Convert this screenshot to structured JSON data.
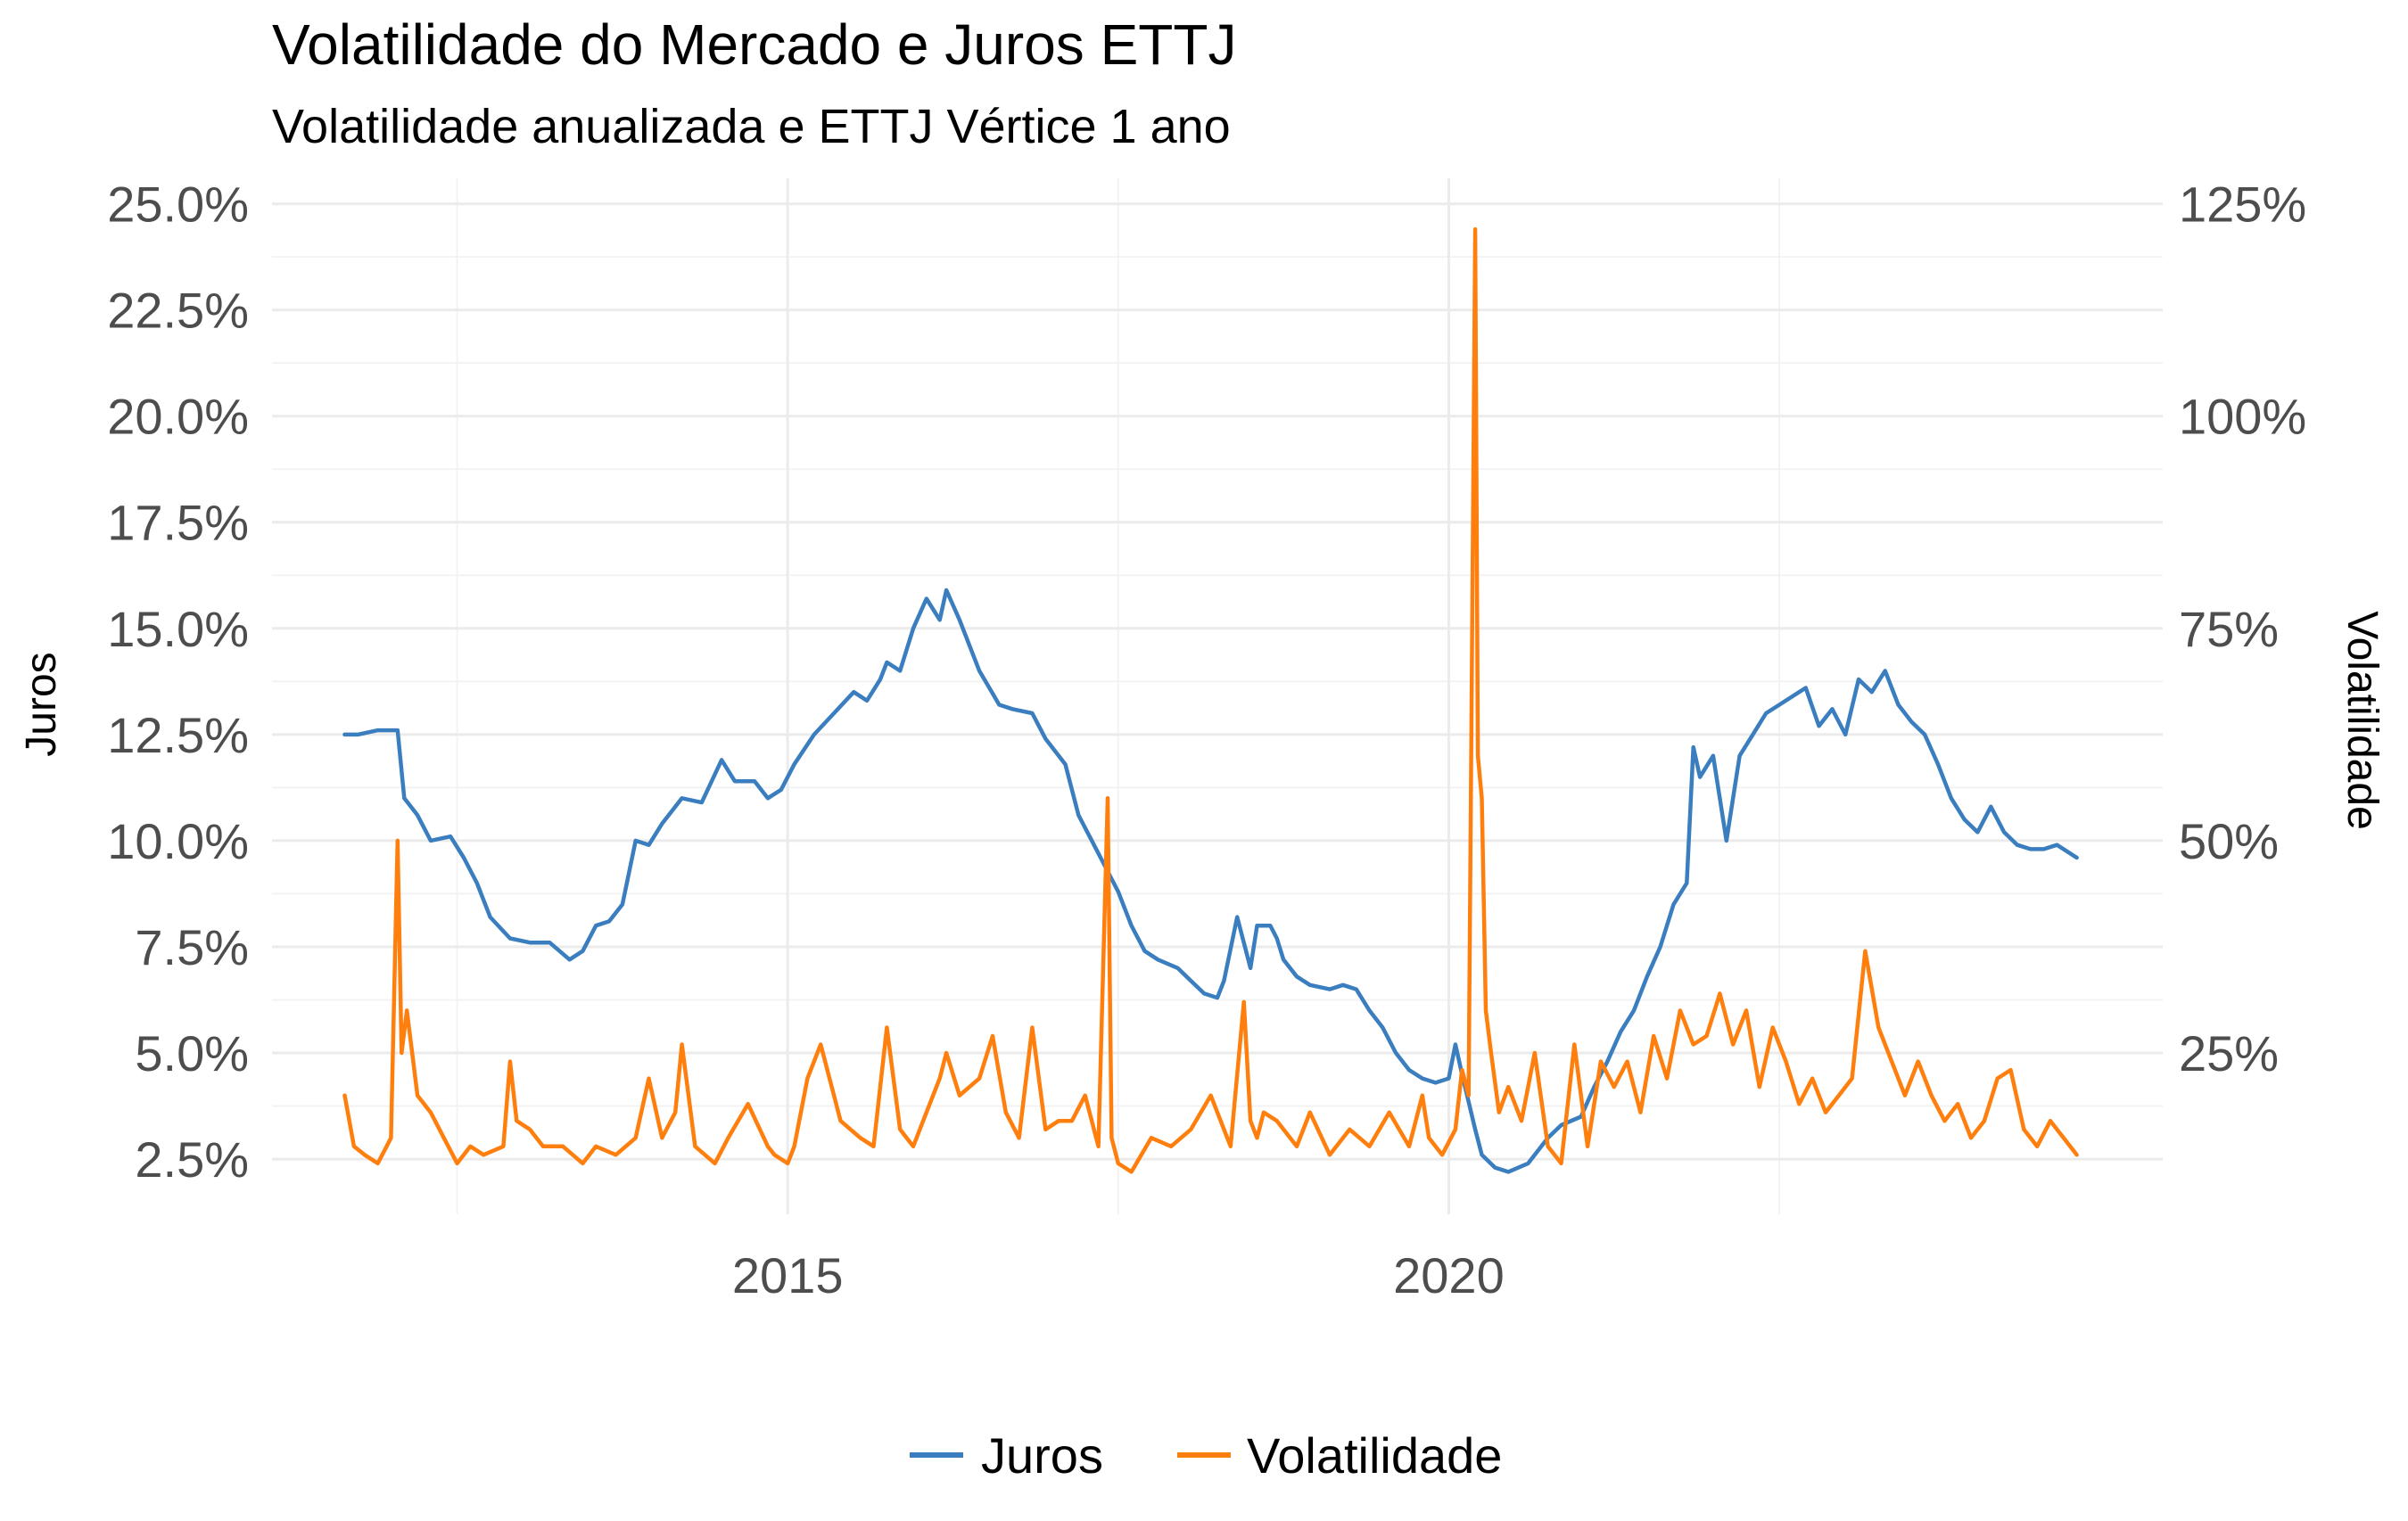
{
  "chart_data": {
    "type": "line",
    "title": "Volatilidade do Mercado e Juros ETTJ",
    "subtitle": "Volatilidade anualizada e ETTJ Vértice 1 ano",
    "ylabel_left": "Juros",
    "ylabel_right": "Volatilidade",
    "xlim": [
      2011.1,
      2025.4
    ],
    "ylim_left": [
      0.012,
      0.256
    ],
    "ylim_right": [
      0.06,
      1.28
    ],
    "x_ticks": [
      2015,
      2020
    ],
    "x_tick_labels": [
      "2015",
      "2020"
    ],
    "y_ticks_left": [
      0.025,
      0.05,
      0.075,
      0.1,
      0.125,
      0.15,
      0.175,
      0.2,
      0.225,
      0.25
    ],
    "y_tick_labels_left": [
      "2.5%",
      "5.0%",
      "7.5%",
      "10.0%",
      "12.5%",
      "15.0%",
      "17.5%",
      "20.0%",
      "22.5%",
      "25.0%"
    ],
    "y_ticks_right": [
      0.25,
      0.5,
      0.75,
      1.0,
      1.25
    ],
    "y_tick_labels_right": [
      "25%",
      "50%",
      "75%",
      "100%",
      "125%"
    ],
    "grid": true,
    "legend_position": "bottom",
    "series": [
      {
        "name": "Juros",
        "axis": "left",
        "color": "#3a7ebf",
        "x": [
          2011.65,
          2011.75,
          2011.9,
          2012.05,
          2012.1,
          2012.2,
          2012.3,
          2012.45,
          2012.55,
          2012.65,
          2012.75,
          2012.9,
          2013.05,
          2013.2,
          2013.35,
          2013.45,
          2013.55,
          2013.65,
          2013.75,
          2013.85,
          2013.95,
          2014.05,
          2014.2,
          2014.35,
          2014.5,
          2014.6,
          2014.75,
          2014.85,
          2014.95,
          2015.05,
          2015.2,
          2015.35,
          2015.5,
          2015.6,
          2015.7,
          2015.75,
          2015.85,
          2015.95,
          2016.05,
          2016.15,
          2016.2,
          2016.3,
          2016.45,
          2016.6,
          2016.7,
          2016.85,
          2016.95,
          2017.1,
          2017.2,
          2017.3,
          2017.4,
          2017.5,
          2017.6,
          2017.7,
          2017.8,
          2017.95,
          2018.05,
          2018.15,
          2018.25,
          2018.3,
          2018.4,
          2018.5,
          2018.55,
          2018.65,
          2018.7,
          2018.75,
          2018.85,
          2018.95,
          2019.1,
          2019.2,
          2019.3,
          2019.4,
          2019.5,
          2019.6,
          2019.7,
          2019.8,
          2019.9,
          2020.0,
          2020.05,
          2020.1,
          2020.2,
          2020.25,
          2020.35,
          2020.45,
          2020.6,
          2020.75,
          2020.85,
          2021.0,
          2021.1,
          2021.2,
          2021.3,
          2021.4,
          2021.5,
          2021.6,
          2021.7,
          2021.8,
          2021.85,
          2021.9,
          2022.0,
          2022.1,
          2022.2,
          2022.3,
          2022.4,
          2022.5,
          2022.6,
          2022.7,
          2022.8,
          2022.9,
          2023.0,
          2023.1,
          2023.2,
          2023.3,
          2023.4,
          2023.5,
          2023.6,
          2023.7,
          2023.8,
          2023.9,
          2024.0,
          2024.1,
          2024.2,
          2024.3,
          2024.4,
          2024.5,
          2024.6,
          2024.75
        ],
        "y": [
          0.125,
          0.125,
          0.126,
          0.126,
          0.11,
          0.106,
          0.1,
          0.101,
          0.096,
          0.09,
          0.082,
          0.077,
          0.076,
          0.076,
          0.072,
          0.074,
          0.08,
          0.081,
          0.085,
          0.1,
          0.099,
          0.104,
          0.11,
          0.109,
          0.119,
          0.114,
          0.114,
          0.11,
          0.112,
          0.118,
          0.125,
          0.13,
          0.135,
          0.133,
          0.138,
          0.142,
          0.14,
          0.15,
          0.157,
          0.152,
          0.159,
          0.152,
          0.14,
          0.132,
          0.131,
          0.13,
          0.124,
          0.118,
          0.106,
          0.1,
          0.094,
          0.088,
          0.08,
          0.074,
          0.072,
          0.07,
          0.067,
          0.064,
          0.063,
          0.067,
          0.082,
          0.07,
          0.08,
          0.08,
          0.077,
          0.072,
          0.068,
          0.066,
          0.065,
          0.066,
          0.065,
          0.06,
          0.056,
          0.05,
          0.046,
          0.044,
          0.043,
          0.044,
          0.052,
          0.045,
          0.032,
          0.026,
          0.023,
          0.022,
          0.024,
          0.03,
          0.033,
          0.035,
          0.042,
          0.048,
          0.055,
          0.06,
          0.068,
          0.075,
          0.085,
          0.09,
          0.122,
          0.115,
          0.12,
          0.1,
          0.12,
          0.125,
          0.13,
          0.132,
          0.134,
          0.136,
          0.127,
          0.131,
          0.125,
          0.138,
          0.135,
          0.14,
          0.132,
          0.128,
          0.125,
          0.118,
          0.11,
          0.105,
          0.102,
          0.108,
          0.102,
          0.099,
          0.098,
          0.098,
          0.099,
          0.096
        ]
      },
      {
        "name": "Volatilidade",
        "axis": "right",
        "color": "#ff7f0e",
        "x": [
          2011.65,
          2011.72,
          2011.8,
          2011.9,
          2012.0,
          2012.05,
          2012.08,
          2012.12,
          2012.2,
          2012.3,
          2012.4,
          2012.5,
          2012.6,
          2012.7,
          2012.85,
          2012.9,
          2012.95,
          2013.05,
          2013.15,
          2013.3,
          2013.45,
          2013.55,
          2013.7,
          2013.85,
          2013.95,
          2014.05,
          2014.15,
          2014.2,
          2014.3,
          2014.45,
          2014.55,
          2014.7,
          2014.85,
          2014.9,
          2015.0,
          2015.05,
          2015.15,
          2015.25,
          2015.4,
          2015.55,
          2015.65,
          2015.75,
          2015.85,
          2015.95,
          2016.05,
          2016.15,
          2016.2,
          2016.3,
          2016.45,
          2016.55,
          2016.65,
          2016.75,
          2016.85,
          2016.95,
          2017.05,
          2017.15,
          2017.25,
          2017.35,
          2017.42,
          2017.45,
          2017.5,
          2017.6,
          2017.75,
          2017.9,
          2018.05,
          2018.2,
          2018.35,
          2018.45,
          2018.5,
          2018.55,
          2018.6,
          2018.7,
          2018.85,
          2018.95,
          2019.1,
          2019.25,
          2019.4,
          2019.55,
          2019.7,
          2019.8,
          2019.85,
          2019.95,
          2020.05,
          2020.1,
          2020.15,
          2020.2,
          2020.22,
          2020.25,
          2020.28,
          2020.32,
          2020.38,
          2020.45,
          2020.55,
          2020.65,
          2020.75,
          2020.85,
          2020.95,
          2021.05,
          2021.15,
          2021.25,
          2021.35,
          2021.45,
          2021.55,
          2021.65,
          2021.75,
          2021.85,
          2021.95,
          2022.05,
          2022.15,
          2022.25,
          2022.35,
          2022.45,
          2022.55,
          2022.65,
          2022.75,
          2022.85,
          2022.95,
          2023.05,
          2023.15,
          2023.25,
          2023.35,
          2023.45,
          2023.55,
          2023.65,
          2023.75,
          2023.85,
          2023.95,
          2024.05,
          2024.15,
          2024.25,
          2024.35,
          2024.45,
          2024.55,
          2024.65,
          2024.75
        ],
        "y": [
          0.2,
          0.14,
          0.13,
          0.12,
          0.15,
          0.5,
          0.25,
          0.3,
          0.2,
          0.18,
          0.15,
          0.12,
          0.14,
          0.13,
          0.14,
          0.24,
          0.17,
          0.16,
          0.14,
          0.14,
          0.12,
          0.14,
          0.13,
          0.15,
          0.22,
          0.15,
          0.18,
          0.26,
          0.14,
          0.12,
          0.15,
          0.19,
          0.14,
          0.13,
          0.12,
          0.14,
          0.22,
          0.26,
          0.17,
          0.15,
          0.14,
          0.28,
          0.16,
          0.14,
          0.18,
          0.22,
          0.25,
          0.2,
          0.22,
          0.27,
          0.18,
          0.15,
          0.28,
          0.16,
          0.17,
          0.17,
          0.2,
          0.14,
          0.55,
          0.15,
          0.12,
          0.11,
          0.15,
          0.14,
          0.16,
          0.2,
          0.14,
          0.31,
          0.17,
          0.15,
          0.18,
          0.17,
          0.14,
          0.18,
          0.13,
          0.16,
          0.14,
          0.18,
          0.14,
          0.2,
          0.15,
          0.13,
          0.16,
          0.23,
          0.2,
          1.22,
          0.6,
          0.55,
          0.3,
          0.25,
          0.18,
          0.21,
          0.17,
          0.25,
          0.14,
          0.12,
          0.26,
          0.14,
          0.24,
          0.21,
          0.24,
          0.18,
          0.27,
          0.22,
          0.3,
          0.26,
          0.27,
          0.32,
          0.26,
          0.3,
          0.21,
          0.28,
          0.24,
          0.19,
          0.22,
          0.18,
          0.2,
          0.22,
          0.37,
          0.28,
          0.24,
          0.2,
          0.24,
          0.2,
          0.17,
          0.19,
          0.15,
          0.17,
          0.22,
          0.23,
          0.16,
          0.14,
          0.17,
          0.15,
          0.13
        ]
      }
    ]
  }
}
